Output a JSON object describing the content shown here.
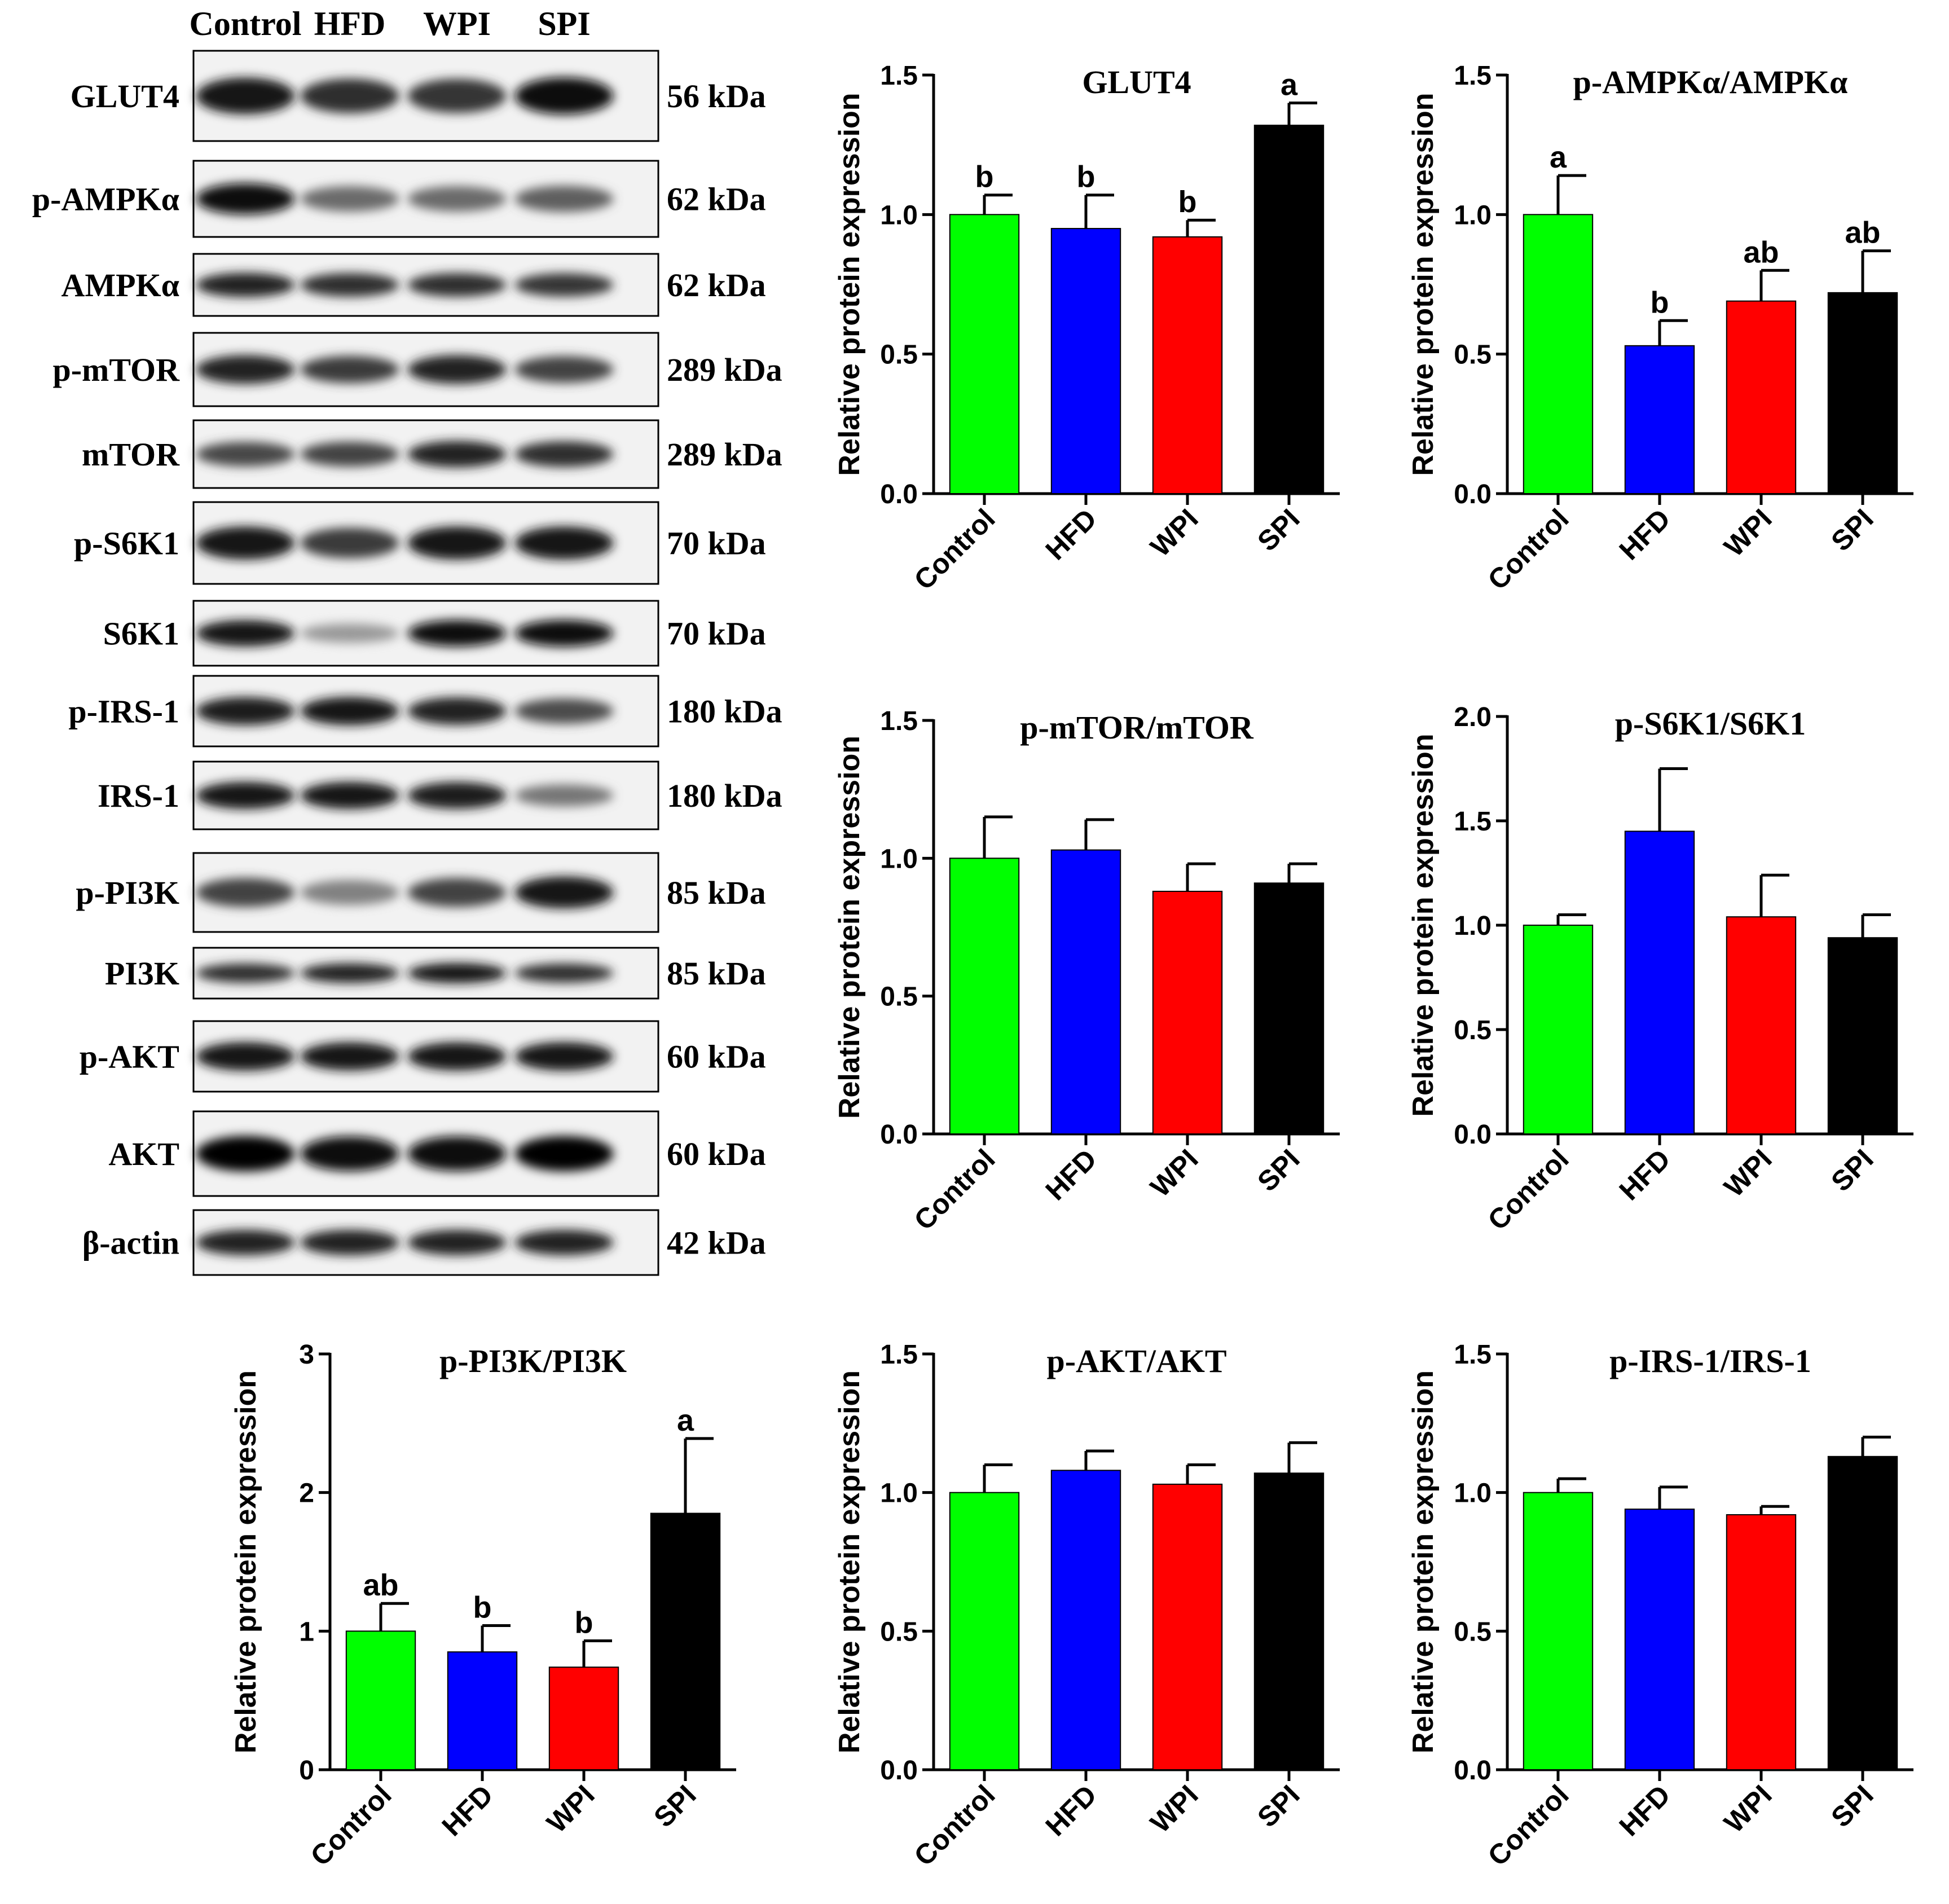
{
  "blot": {
    "lanes": [
      "Control",
      "HFD",
      "WPI",
      "SPI"
    ],
    "rows": [
      {
        "protein": "GLUT4",
        "mw": "56 kDa",
        "intensity": [
          0.92,
          0.8,
          0.78,
          0.95
        ]
      },
      {
        "protein": "p-AMPKα",
        "mw": "62 kDa",
        "intensity": [
          0.95,
          0.55,
          0.55,
          0.6
        ]
      },
      {
        "protein": "AMPKα",
        "mw": "62 kDa",
        "intensity": [
          0.85,
          0.8,
          0.8,
          0.78
        ]
      },
      {
        "protein": "p-mTOR",
        "mw": "289 kDa",
        "intensity": [
          0.85,
          0.75,
          0.85,
          0.72
        ]
      },
      {
        "protein": "mTOR",
        "mw": "289 kDa",
        "intensity": [
          0.7,
          0.72,
          0.85,
          0.8
        ]
      },
      {
        "protein": "p-S6K1",
        "mw": "70 kDa",
        "intensity": [
          0.92,
          0.75,
          0.92,
          0.92
        ]
      },
      {
        "protein": "S6K1",
        "mw": "70 kDa",
        "intensity": [
          0.92,
          0.35,
          0.95,
          0.97
        ]
      },
      {
        "protein": "p-IRS-1",
        "mw": "180 kDa",
        "intensity": [
          0.88,
          0.9,
          0.85,
          0.68
        ]
      },
      {
        "protein": "IRS-1",
        "mw": "180 kDa",
        "intensity": [
          0.9,
          0.9,
          0.88,
          0.5
        ]
      },
      {
        "protein": "p-PI3K",
        "mw": "85 kDa",
        "intensity": [
          0.72,
          0.45,
          0.72,
          0.92
        ]
      },
      {
        "protein": "PI3K",
        "mw": "85 kDa",
        "intensity": [
          0.8,
          0.85,
          0.9,
          0.8
        ]
      },
      {
        "protein": "p-AKT",
        "mw": "60 kDa",
        "intensity": [
          0.92,
          0.9,
          0.9,
          0.92
        ]
      },
      {
        "protein": "AKT",
        "mw": "60 kDa",
        "intensity": [
          1.0,
          0.95,
          0.95,
          0.98
        ]
      },
      {
        "protein": "β-actin",
        "mw": "42 kDa",
        "intensity": [
          0.85,
          0.85,
          0.85,
          0.85
        ]
      }
    ]
  },
  "colors": {
    "Control": "#00ff00",
    "HFD": "#0000ff",
    "WPI": "#ff0000",
    "SPI": "#000000"
  },
  "chart_data": [
    {
      "type": "bar",
      "title": "GLUT4",
      "ylabel": "Relative protein expression",
      "categories": [
        "Control",
        "HFD",
        "WPI",
        "SPI"
      ],
      "values": [
        1.0,
        0.95,
        0.92,
        1.32
      ],
      "errors": [
        0.07,
        0.12,
        0.06,
        0.08
      ],
      "letters": [
        "b",
        "b",
        "b",
        "a"
      ],
      "ylim": [
        0,
        1.5
      ],
      "yticks": [
        "0.0",
        "0.5",
        "1.0",
        "1.5"
      ]
    },
    {
      "type": "bar",
      "title": "p-AMPKα/AMPKα",
      "ylabel": "Relative protein expression",
      "categories": [
        "Control",
        "HFD",
        "WPI",
        "SPI"
      ],
      "values": [
        1.0,
        0.53,
        0.69,
        0.72
      ],
      "errors": [
        0.14,
        0.09,
        0.11,
        0.15
      ],
      "letters": [
        "a",
        "b",
        "ab",
        "ab"
      ],
      "ylim": [
        0,
        1.5
      ],
      "yticks": [
        "0.0",
        "0.5",
        "1.0",
        "1.5"
      ]
    },
    {
      "type": "bar",
      "title": "p-mTOR/mTOR",
      "ylabel": "Relative protein expression",
      "categories": [
        "Control",
        "HFD",
        "WPI",
        "SPI"
      ],
      "values": [
        1.0,
        1.03,
        0.88,
        0.91
      ],
      "errors": [
        0.15,
        0.11,
        0.1,
        0.07
      ],
      "letters": [
        "",
        "",
        "",
        ""
      ],
      "ylim": [
        0,
        1.5
      ],
      "yticks": [
        "0.0",
        "0.5",
        "1.0",
        "1.5"
      ]
    },
    {
      "type": "bar",
      "title": "p-S6K1/S6K1",
      "ylabel": "Relative protein expression",
      "categories": [
        "Control",
        "HFD",
        "WPI",
        "SPI"
      ],
      "values": [
        1.0,
        1.45,
        1.04,
        0.94
      ],
      "errors": [
        0.05,
        0.3,
        0.2,
        0.11
      ],
      "letters": [
        "",
        "",
        "",
        ""
      ],
      "ylim": [
        0,
        2.0
      ],
      "yticks": [
        "0.0",
        "0.5",
        "1.0",
        "1.5",
        "2.0"
      ]
    },
    {
      "type": "bar",
      "title": "p-PI3K/PI3K",
      "ylabel": "Relative protein expression",
      "categories": [
        "Control",
        "HFD",
        "WPI",
        "SPI"
      ],
      "values": [
        1.0,
        0.85,
        0.74,
        1.85
      ],
      "errors": [
        0.2,
        0.19,
        0.19,
        0.54
      ],
      "letters": [
        "ab",
        "b",
        "b",
        "a"
      ],
      "ylim": [
        0,
        3
      ],
      "yticks": [
        "0",
        "1",
        "2",
        "3"
      ]
    },
    {
      "type": "bar",
      "title": "p-AKT/AKT",
      "ylabel": "Relative protein expression",
      "categories": [
        "Control",
        "HFD",
        "WPI",
        "SPI"
      ],
      "values": [
        1.0,
        1.08,
        1.03,
        1.07
      ],
      "errors": [
        0.1,
        0.07,
        0.07,
        0.11
      ],
      "letters": [
        "",
        "",
        "",
        ""
      ],
      "ylim": [
        0,
        1.5
      ],
      "yticks": [
        "0.0",
        "0.5",
        "1.0",
        "1.5"
      ]
    },
    {
      "type": "bar",
      "title": "p-IRS-1/IRS-1",
      "ylabel": "Relative protein expression",
      "categories": [
        "Control",
        "HFD",
        "WPI",
        "SPI"
      ],
      "values": [
        1.0,
        0.94,
        0.92,
        1.13
      ],
      "errors": [
        0.05,
        0.08,
        0.03,
        0.07
      ],
      "letters": [
        "",
        "",
        "",
        ""
      ],
      "ylim": [
        0,
        1.5
      ],
      "yticks": [
        "0.0",
        "0.5",
        "1.0",
        "1.5"
      ]
    }
  ]
}
